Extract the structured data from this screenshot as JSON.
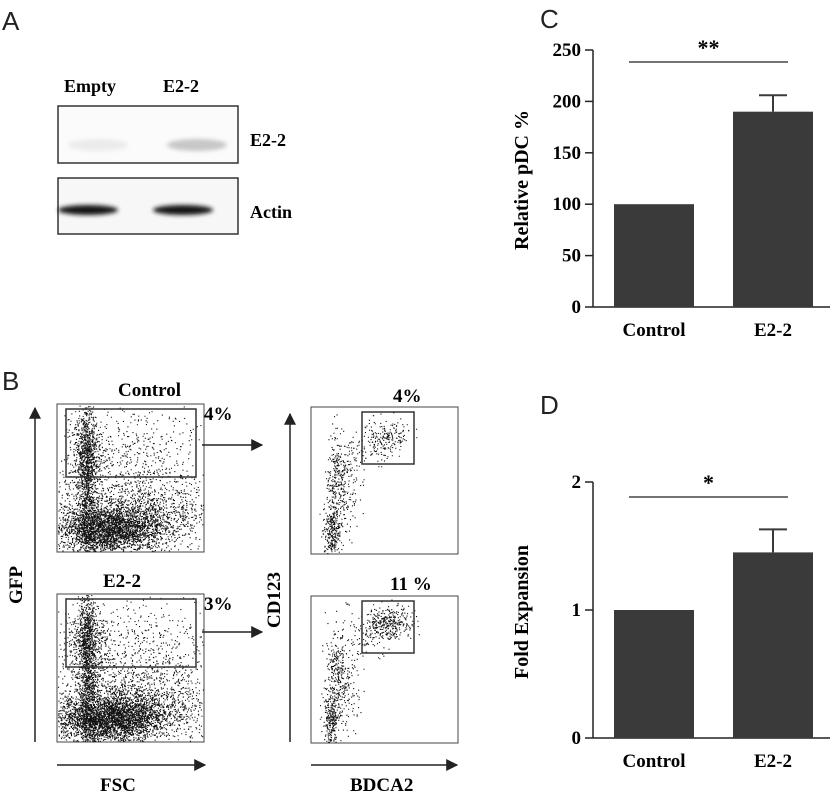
{
  "panels": {
    "a": {
      "letter": "A",
      "lanes": [
        "Empty",
        "E2-2"
      ],
      "blots": [
        {
          "label": "E2-2",
          "band_intensity": [
            0.02,
            0.18
          ]
        },
        {
          "label": "Actin",
          "band_intensity": [
            0.95,
            0.95
          ]
        }
      ]
    },
    "b": {
      "letter": "B",
      "gfp_plots": [
        {
          "title": "Control",
          "gate_percent": "4%"
        },
        {
          "title": "E2-2",
          "gate_percent": "3%"
        }
      ],
      "pdc_plots": [
        {
          "gate_percent": "4%"
        },
        {
          "gate_percent": "11 %"
        }
      ],
      "axes": {
        "gfp_y": "GFP",
        "fsc_x": "FSC",
        "cd123_y": "CD123",
        "bdca2_x": "BDCA2"
      }
    },
    "c": {
      "letter": "C"
    },
    "d": {
      "letter": "D"
    }
  },
  "chart_data": [
    {
      "type": "bar",
      "panel": "C",
      "categories": [
        "Control",
        "E2-2"
      ],
      "values": [
        100,
        190
      ],
      "errors": [
        0,
        16
      ],
      "ylabel": "Relative pDC %",
      "ylim": [
        0,
        250
      ],
      "yticks": [
        0,
        50,
        100,
        150,
        200,
        250
      ],
      "significance": "**",
      "bar_color": "#3a3a3a",
      "grid": false
    },
    {
      "type": "bar",
      "panel": "D",
      "categories": [
        "Control",
        "E2-2"
      ],
      "values": [
        1,
        1.45
      ],
      "errors": [
        0,
        0.18
      ],
      "ylabel": "Fold Expansion",
      "ylim": [
        0,
        2
      ],
      "yticks": [
        0,
        1,
        2
      ],
      "significance": "*",
      "bar_color": "#3a3a3a",
      "grid": false
    }
  ]
}
